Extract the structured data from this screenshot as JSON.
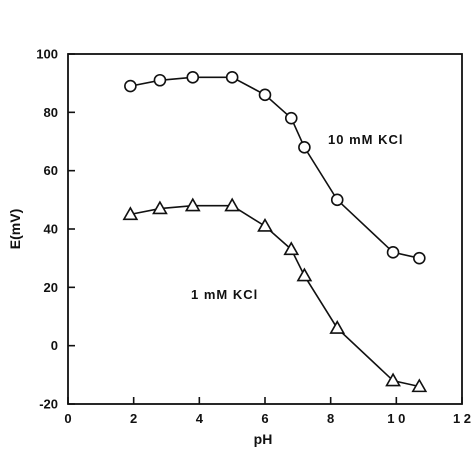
{
  "chart_data": {
    "type": "line",
    "xlabel": "pH",
    "ylabel": "E(mV)",
    "xlim": [
      0,
      12
    ],
    "ylim": [
      -20,
      100
    ],
    "xticks": [
      0,
      2,
      4,
      6,
      8,
      10,
      12
    ],
    "xtick_labels": [
      "0",
      "2",
      "4",
      "6",
      "8",
      "1 0",
      "1 2"
    ],
    "yticks": [
      -20,
      0,
      20,
      40,
      60,
      80,
      100
    ],
    "ytick_labels": [
      "-20",
      "0",
      "20",
      "40",
      "60",
      "80",
      "100"
    ],
    "grid": false,
    "series": [
      {
        "name": "10 mM KCl",
        "label_text": "10  mM  KCl",
        "marker": "circle",
        "x": [
          1.9,
          2.8,
          3.8,
          5.0,
          6.0,
          6.8,
          7.2,
          8.2,
          9.9,
          10.7
        ],
        "y": [
          89,
          91,
          92,
          92,
          86,
          78,
          68,
          50,
          32,
          30
        ]
      },
      {
        "name": "1 mM KCl",
        "label_text": "1  mM  KCl",
        "marker": "triangle",
        "x": [
          1.9,
          2.8,
          3.8,
          5.0,
          6.0,
          6.8,
          7.2,
          8.2,
          9.9,
          10.7
        ],
        "y": [
          45,
          47,
          48,
          48,
          41,
          33,
          24,
          6,
          -12,
          -14
        ]
      }
    ],
    "colors": {
      "line": "#111111",
      "marker_fill": "#ffffff"
    }
  }
}
